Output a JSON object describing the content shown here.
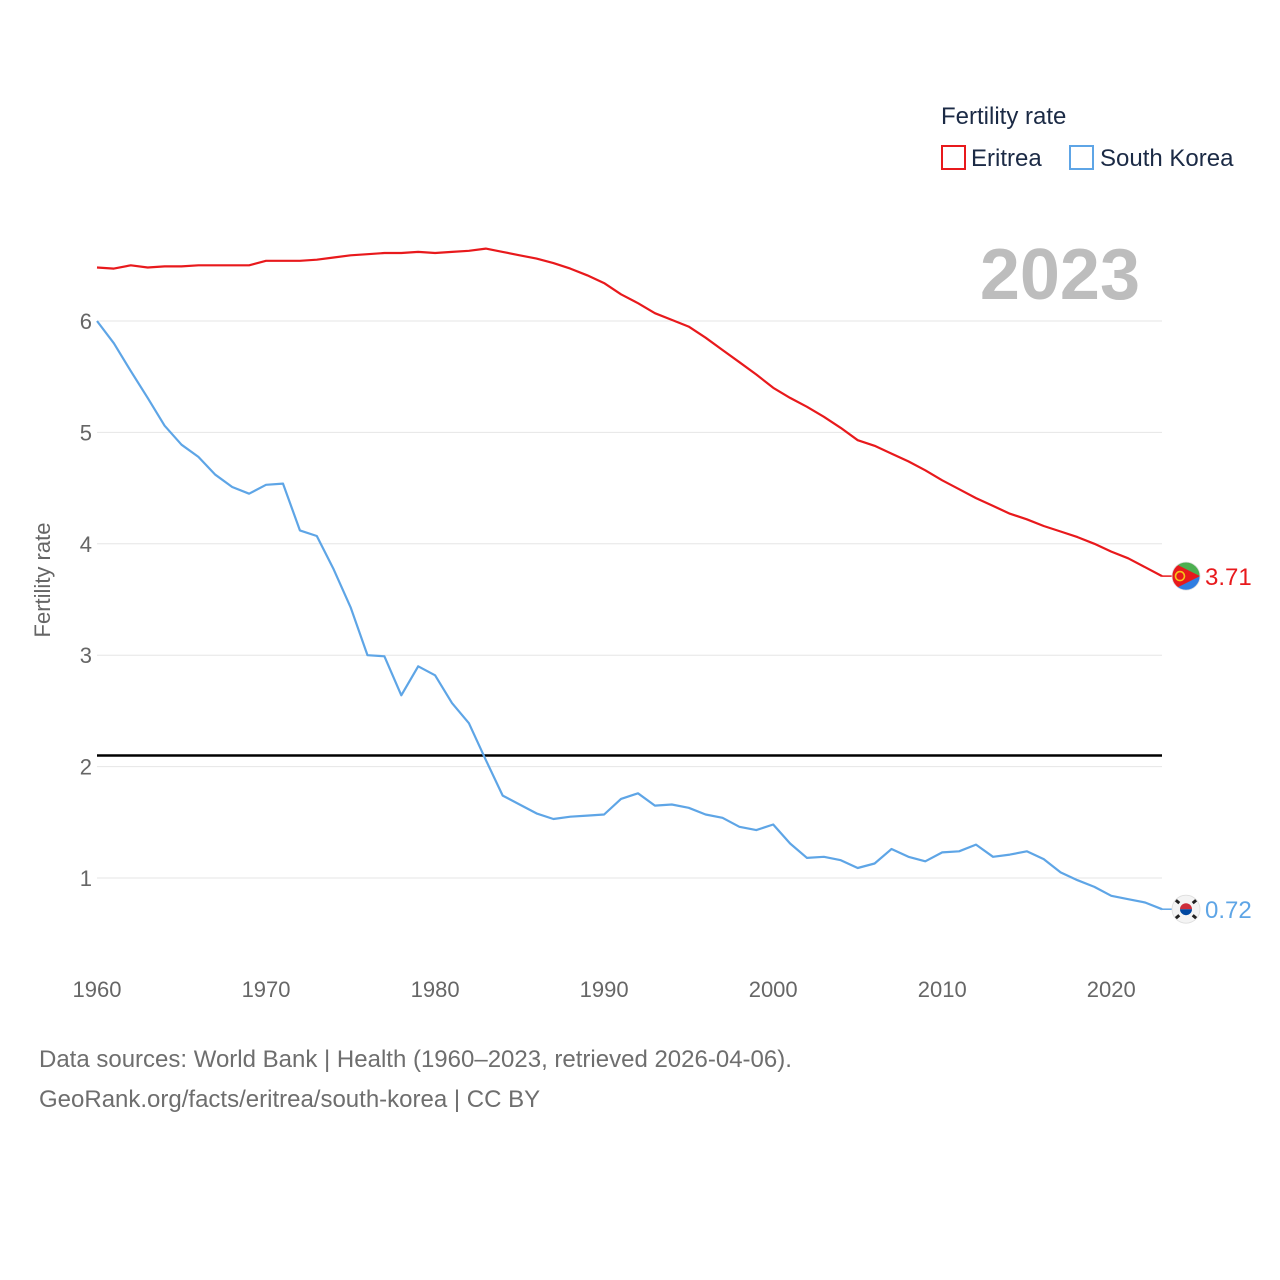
{
  "chart_data": {
    "type": "line",
    "ylabel": "Fertility rate",
    "year_label": "2023",
    "legend_title": "Fertility rate",
    "xlim": [
      1960,
      2023
    ],
    "ylim": [
      0.3,
      6.9
    ],
    "x_ticks": [
      1960,
      1970,
      1980,
      1990,
      2000,
      2010,
      2020
    ],
    "y_ticks": [
      1,
      2,
      3,
      4,
      5,
      6
    ],
    "reference_line": 2.1,
    "x": [
      1960,
      1961,
      1962,
      1963,
      1964,
      1965,
      1966,
      1967,
      1968,
      1969,
      1970,
      1971,
      1972,
      1973,
      1974,
      1975,
      1976,
      1977,
      1978,
      1979,
      1980,
      1981,
      1982,
      1983,
      1984,
      1985,
      1986,
      1987,
      1988,
      1989,
      1990,
      1991,
      1992,
      1993,
      1994,
      1995,
      1996,
      1997,
      1998,
      1999,
      2000,
      2001,
      2002,
      2003,
      2004,
      2005,
      2006,
      2007,
      2008,
      2009,
      2010,
      2011,
      2012,
      2013,
      2014,
      2015,
      2016,
      2017,
      2018,
      2019,
      2020,
      2021,
      2022,
      2023
    ],
    "series": [
      {
        "name": "Eritrea",
        "color": "#e8191c",
        "end_label": "3.71",
        "flag": "eritrea-flag",
        "values": [
          6.48,
          6.47,
          6.5,
          6.48,
          6.49,
          6.49,
          6.5,
          6.5,
          6.5,
          6.5,
          6.54,
          6.54,
          6.54,
          6.55,
          6.57,
          6.59,
          6.6,
          6.61,
          6.61,
          6.62,
          6.61,
          6.62,
          6.63,
          6.65,
          6.62,
          6.59,
          6.56,
          6.52,
          6.47,
          6.41,
          6.34,
          6.24,
          6.16,
          6.07,
          6.01,
          5.95,
          5.85,
          5.74,
          5.63,
          5.52,
          5.4,
          5.31,
          5.23,
          5.14,
          5.04,
          4.93,
          4.88,
          4.81,
          4.74,
          4.66,
          4.57,
          4.49,
          4.41,
          4.34,
          4.27,
          4.22,
          4.16,
          4.11,
          4.06,
          4.0,
          3.93,
          3.87,
          3.79,
          3.71
        ]
      },
      {
        "name": "South Korea",
        "color": "#5ea5e6",
        "end_label": "0.72",
        "flag": "south-korea-flag",
        "values": [
          6.0,
          5.8,
          5.55,
          5.31,
          5.06,
          4.89,
          4.78,
          4.62,
          4.51,
          4.45,
          4.53,
          4.54,
          4.12,
          4.07,
          3.77,
          3.43,
          3.0,
          2.99,
          2.64,
          2.9,
          2.82,
          2.57,
          2.39,
          2.06,
          1.74,
          1.66,
          1.58,
          1.53,
          1.55,
          1.56,
          1.57,
          1.71,
          1.76,
          1.65,
          1.66,
          1.63,
          1.57,
          1.54,
          1.46,
          1.43,
          1.48,
          1.31,
          1.18,
          1.19,
          1.16,
          1.09,
          1.13,
          1.26,
          1.19,
          1.15,
          1.23,
          1.24,
          1.3,
          1.19,
          1.21,
          1.24,
          1.17,
          1.05,
          0.98,
          0.92,
          0.84,
          0.81,
          0.78,
          0.72
        ]
      }
    ]
  },
  "footer": {
    "line1": "Data sources: World Bank | Health (1960–2023, retrieved 2026-04-06).",
    "line2": "GeoRank.org/facts/eritrea/south-korea | CC BY"
  }
}
